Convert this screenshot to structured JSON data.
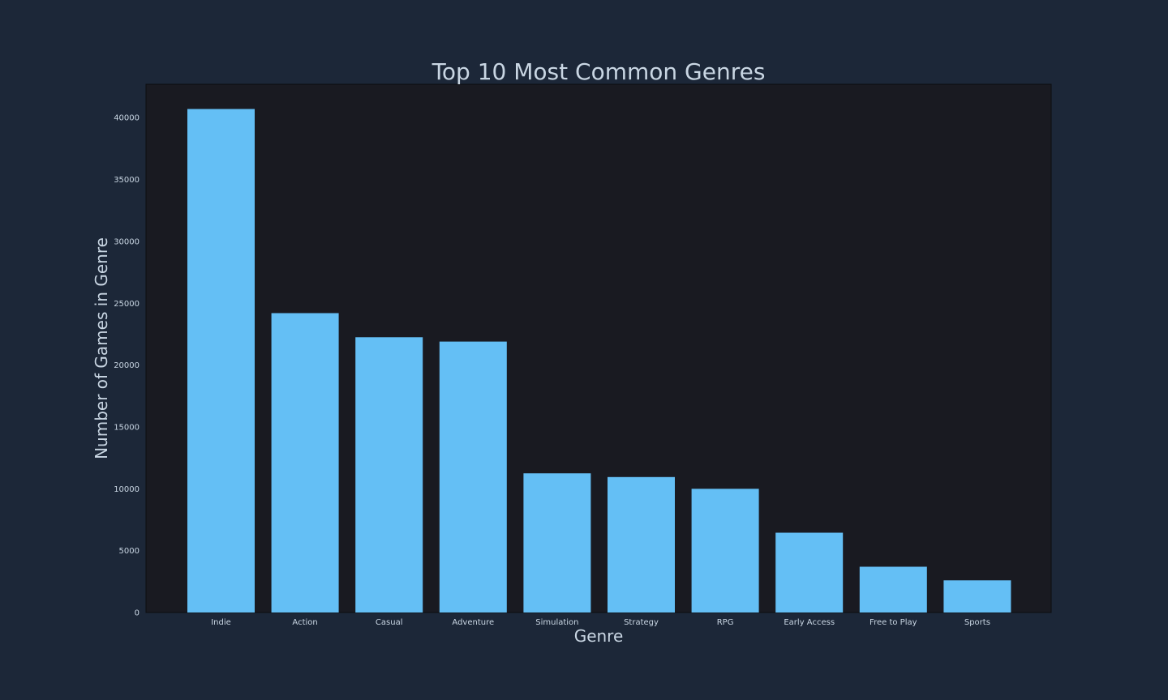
{
  "chart_data": {
    "type": "bar",
    "title": "Top 10 Most Common Genres",
    "xlabel": "Genre",
    "ylabel": "Number of Games in Genre",
    "categories": [
      "Indie",
      "Action",
      "Casual",
      "Adventure",
      "Simulation",
      "Strategy",
      "RPG",
      "Early Access",
      "Free to Play",
      "Sports"
    ],
    "values": [
      40700,
      24200,
      22250,
      21900,
      11250,
      10950,
      10000,
      6450,
      3700,
      2600
    ],
    "ylim": [
      0,
      42700
    ],
    "yticks": [
      0,
      5000,
      10000,
      15000,
      20000,
      25000,
      30000,
      35000,
      40000
    ],
    "grid": false,
    "colors": {
      "bar": "#64bff5",
      "plot_background": "#191a21",
      "page_background": "#1c2738",
      "text": "#c9d6e3"
    }
  }
}
